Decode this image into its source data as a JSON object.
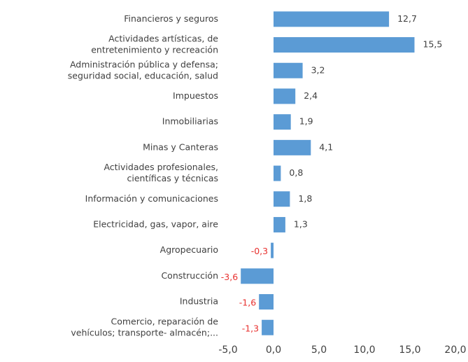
{
  "chart_data": {
    "type": "barh",
    "categories": [
      [
        "Financieros y seguros"
      ],
      [
        "Actividades artísticas, de",
        "entretenimiento y recreación"
      ],
      [
        "Administración pública y defensa;",
        "seguridad social, educación, salud"
      ],
      [
        "Impuestos"
      ],
      [
        "Inmobiliarias"
      ],
      [
        "Minas y Canteras"
      ],
      [
        "Actividades profesionales,",
        "científicas y técnicas"
      ],
      [
        "Información y comunicaciones"
      ],
      [
        "Electricidad, gas, vapor, aire"
      ],
      [
        "Agropecuario"
      ],
      [
        "Construcción"
      ],
      [
        "Industria"
      ],
      [
        "Comercio, reparación de",
        "vehículos; transporte- almacén;..."
      ]
    ],
    "values": [
      12.7,
      15.5,
      3.2,
      2.4,
      1.9,
      4.1,
      0.8,
      1.8,
      1.3,
      -0.3,
      -3.6,
      -1.6,
      -1.3
    ],
    "value_labels": [
      "12,7",
      "15,5",
      "3,2",
      "2,4",
      "1,9",
      "4,1",
      "0,8",
      "1,8",
      "1,3",
      "-0,3",
      "-3,6",
      "-1,6",
      "-1,3"
    ],
    "color": "#5b9bd5",
    "negative_label_color": "#e8312f",
    "xlim": [
      -5,
      20
    ],
    "xticks": [
      {
        "value": -5,
        "label": "-5,0"
      },
      {
        "value": 0,
        "label": "0,0"
      },
      {
        "value": 5,
        "label": "5,0"
      },
      {
        "value": 10,
        "label": "10,0"
      },
      {
        "value": 15,
        "label": "15,0"
      },
      {
        "value": 20,
        "label": "20,0"
      }
    ]
  }
}
